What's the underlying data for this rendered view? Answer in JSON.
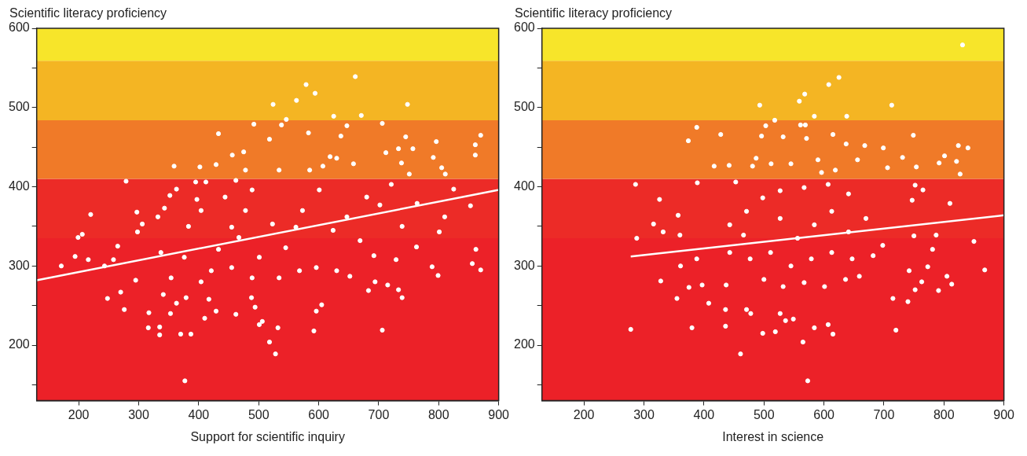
{
  "chart_data": [
    {
      "type": "scatter",
      "xlabel": "Support for scientific inquiry",
      "ylabel": "Scientific literacy proficiency",
      "xlim": [
        130,
        900
      ],
      "ylim": [
        130,
        600
      ],
      "xticks": [
        200,
        300,
        400,
        500,
        600,
        700,
        800,
        900
      ],
      "yticks": [
        {
          "value": 150,
          "label": null
        },
        200,
        {
          "value": 250,
          "label": null
        },
        300,
        {
          "value": 350,
          "label": null
        },
        400,
        {
          "value": 450,
          "label": null
        },
        500,
        {
          "value": 550,
          "label": null
        },
        600
      ],
      "grid": false,
      "legend": false,
      "bands": [
        {
          "axis": "y",
          "from": 130,
          "to": 335,
          "color": "#ec2128"
        },
        {
          "axis": "y",
          "from": 335,
          "to": 410,
          "color": "#ec2b27"
        },
        {
          "axis": "y",
          "from": 410,
          "to": 484,
          "color": "#f07a28"
        },
        {
          "axis": "y",
          "from": 484,
          "to": 559,
          "color": "#f4b523"
        },
        {
          "axis": "y",
          "from": 559,
          "to": 600,
          "color": "#f7e52a"
        }
      ],
      "series": [
        {
          "type": "scatter",
          "color": "#ffffff",
          "marker": "circle",
          "x": [
            171,
            194,
            199,
            206,
            220,
            216,
            243,
            248,
            258,
            265,
            270,
            276,
            279,
            297,
            298,
            306,
            295,
            317,
            316,
            335,
            335,
            341,
            332,
            343,
            337,
            352,
            359,
            363,
            353,
            363,
            370,
            387,
            377,
            379,
            383,
            397,
            402,
            395,
            404,
            410,
            412,
            433,
            429,
            417,
            429,
            456,
            475,
            462,
            462,
            488,
            494,
            492,
            501,
            506,
            518,
            528,
            532,
            524,
            518,
            538,
            546,
            563,
            579,
            594,
            583,
            592,
            596,
            605,
            625,
            661,
            671,
            647,
            637,
            630,
            658,
            706,
            706,
            712,
            733,
            738,
            745,
            748,
            757,
            751,
            739,
            733,
            729,
            715,
            694,
            683,
            692,
            702,
            721,
            739,
            763,
            764,
            791,
            796,
            789,
            799,
            801,
            810,
            805,
            811,
            825,
            853,
            856,
            862,
            870,
            861,
            861,
            870,
            433,
            455,
            478,
            489,
            404,
            444,
            467,
            501,
            523,
            545,
            573,
            601,
            624,
            647,
            669,
            680,
            376,
            354,
            421,
            455,
            489,
            534,
            568,
            596,
            630,
            652,
            562,
            585,
            607,
            619,
            534,
            478
          ],
          "values": [
            300,
            312,
            336,
            340,
            365,
            308,
            300,
            259,
            308,
            325,
            267,
            245,
            407,
            368,
            343,
            353,
            282,
            241,
            222,
            223,
            213,
            264,
            362,
            373,
            317,
            389,
            426,
            397,
            240,
            253,
            214,
            214,
            155,
            260,
            350,
            384,
            425,
            406,
            280,
            234,
            406,
            467,
            428,
            258,
            243,
            440,
            444,
            408,
            239,
            260,
            248,
            479,
            226,
            230,
            204,
            189,
            222,
            504,
            460,
            478,
            485,
            509,
            529,
            518,
            468,
            218,
            243,
            251,
            489,
            539,
            490,
            477,
            464,
            436,
            429,
            480,
            219,
            443,
            448,
            430,
            463,
            504,
            448,
            416,
            260,
            270,
            308,
            276,
            280,
            269,
            313,
            377,
            403,
            350,
            324,
            379,
            437,
            457,
            299,
            288,
            343,
            362,
            424,
            416,
            397,
            376,
            303,
            321,
            295,
            453,
            440,
            465,
            321,
            349,
            370,
            396,
            370,
            387,
            336,
            311,
            353,
            323,
            370,
            396,
            345,
            362,
            332,
            387,
            311,
            285,
            294,
            298,
            285,
            285,
            294,
            298,
            294,
            287,
            349,
            421,
            426,
            438,
            421,
            421
          ]
        },
        {
          "type": "line",
          "color": "#ffffff",
          "marker": "none",
          "x": [
            130,
            900
          ],
          "values": [
            282,
            396
          ]
        }
      ]
    },
    {
      "type": "scatter",
      "xlabel": "Interest in science",
      "ylabel": "Scientific literacy proficiency",
      "xlim": [
        130,
        900
      ],
      "ylim": [
        130,
        600
      ],
      "xticks": [
        200,
        300,
        400,
        500,
        600,
        700,
        800,
        900
      ],
      "yticks": [
        {
          "value": 150,
          "label": null
        },
        200,
        {
          "value": 250,
          "label": null
        },
        300,
        {
          "value": 350,
          "label": null
        },
        400,
        {
          "value": 450,
          "label": null
        },
        500,
        {
          "value": 550,
          "label": null
        },
        600
      ],
      "grid": false,
      "legend": false,
      "bands": [
        {
          "axis": "y",
          "from": 130,
          "to": 335,
          "color": "#ec2128"
        },
        {
          "axis": "y",
          "from": 335,
          "to": 410,
          "color": "#ec2b27"
        },
        {
          "axis": "y",
          "from": 410,
          "to": 484,
          "color": "#f07a28"
        },
        {
          "axis": "y",
          "from": 484,
          "to": 559,
          "color": "#f4b523"
        },
        {
          "axis": "y",
          "from": 559,
          "to": 600,
          "color": "#f7e52a"
        }
      ],
      "series": [
        {
          "type": "scatter",
          "color": "#ffffff",
          "marker": "circle",
          "x": [
            278,
            286,
            288,
            326,
            316,
            328,
            332,
            355,
            357,
            360,
            361,
            374,
            375,
            380,
            388,
            389,
            388,
            397,
            408,
            417,
            428,
            436,
            436,
            437,
            442,
            453,
            461,
            471,
            478,
            481,
            487,
            493,
            496,
            498,
            503,
            512,
            518,
            519,
            527,
            532,
            536,
            549,
            559,
            568,
            561,
            569,
            571,
            584,
            573,
            565,
            584,
            596,
            608,
            625,
            615,
            637,
            607,
            615,
            638,
            656,
            668,
            699,
            713,
            706,
            720,
            715,
            731,
            747,
            749,
            754,
            750,
            742,
            740,
            752,
            752,
            763,
            765,
            773,
            781,
            787,
            791,
            805,
            810,
            813,
            792,
            801,
            821,
            824,
            827,
            840,
            850,
            868,
            831,
            443,
            471,
            498,
            527,
            556,
            584,
            613,
            641,
            670,
            698,
            477,
            511,
            545,
            579,
            613,
            647,
            682,
            500,
            532,
            567,
            601,
            636,
            659,
            527,
            567,
            607,
            641,
            545,
            590,
            619,
            443,
            466
          ],
          "values": [
            220,
            403,
            335,
            384,
            353,
            281,
            343,
            259,
            364,
            339,
            300,
            458,
            273,
            222,
            475,
            405,
            309,
            276,
            253,
            426,
            466,
            224,
            245,
            276,
            427,
            406,
            189,
            245,
            240,
            426,
            436,
            503,
            464,
            215,
            477,
            429,
            484,
            217,
            240,
            463,
            231,
            233,
            508,
            517,
            478,
            478,
            461,
            489,
            155,
            204,
            222,
            418,
            529,
            538,
            466,
            454,
            226,
            214,
            489,
            434,
            452,
            449,
            503,
            424,
            219,
            259,
            437,
            383,
            465,
            425,
            338,
            294,
            255,
            270,
            402,
            280,
            396,
            299,
            321,
            339,
            269,
            287,
            379,
            277,
            430,
            439,
            432,
            452,
            416,
            449,
            331,
            295,
            579,
            352,
            369,
            386,
            360,
            335,
            352,
            369,
            343,
            360,
            326,
            309,
            317,
            300,
            309,
            317,
            309,
            313,
            283,
            274,
            279,
            274,
            283,
            287,
            395,
            399,
            403,
            391,
            429,
            434,
            421,
            317,
            339
          ]
        },
        {
          "type": "line",
          "color": "#ffffff",
          "marker": "none",
          "x": [
            278,
            900
          ],
          "values": [
            312,
            364
          ]
        }
      ]
    }
  ]
}
